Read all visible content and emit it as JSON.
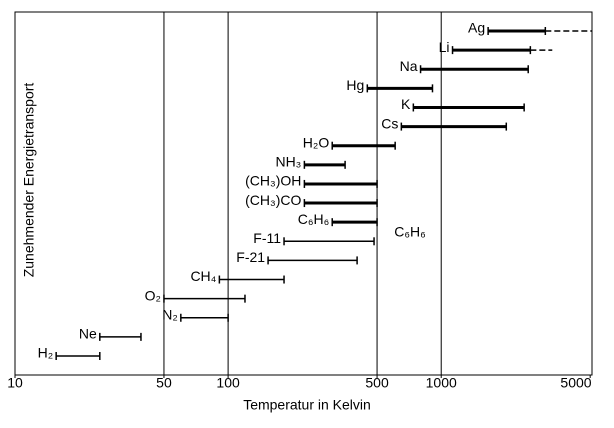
{
  "chart_data": {
    "type": "range",
    "xlabel": "Temperatur in Kelvin",
    "ylabel": "Zunehmender Energietransport",
    "xlog": true,
    "xlim": [
      10,
      5100
    ],
    "xticks": [
      10,
      50,
      100,
      500,
      1000,
      5000
    ],
    "grid_x": [
      50,
      100,
      500,
      1000
    ],
    "color": "#000000",
    "bars": [
      {
        "name": "Ag",
        "low": 1660,
        "high": 3080,
        "extended": 5100,
        "thick": true
      },
      {
        "name": "Li",
        "low": 1130,
        "high": 2620,
        "extended": 3320,
        "thick": true
      },
      {
        "name": "Na",
        "low": 800,
        "high": 2560,
        "thick": true
      },
      {
        "name": "Hg",
        "low": 450,
        "high": 910,
        "thick": true
      },
      {
        "name": "K",
        "low": 740,
        "high": 2450,
        "thick": true
      },
      {
        "name": "Cs",
        "low": 650,
        "high": 2020,
        "thick": true
      },
      {
        "name": "H₂O",
        "low": 308,
        "high": 608,
        "thick": true
      },
      {
        "name": "NH₃",
        "low": 228,
        "high": 354,
        "thick": true
      },
      {
        "name": "(CH₃)OH",
        "low": 228,
        "high": 500,
        "thick": true
      },
      {
        "name": "(CH₃)CO",
        "low": 228,
        "high": 500,
        "thick": true
      },
      {
        "name": "C₆H₆",
        "low": 308,
        "high": 500,
        "thick": true
      },
      {
        "name": "F-11",
        "low": 183,
        "high": 484,
        "thick": false
      },
      {
        "name": "F-21",
        "low": 154,
        "high": 403,
        "thick": false
      },
      {
        "name": "CH₄",
        "low": 91,
        "high": 183,
        "thick": false
      },
      {
        "name": "O₂",
        "low": 50,
        "high": 120,
        "thick": false
      },
      {
        "name": "N₂",
        "low": 60,
        "high": 100,
        "thick": false
      },
      {
        "name": "Ne",
        "low": 25,
        "high": 39,
        "thick": false
      },
      {
        "name": "H₂",
        "low": 15.6,
        "high": 25,
        "thick": false
      }
    ],
    "annotation": "C₆H₆"
  }
}
